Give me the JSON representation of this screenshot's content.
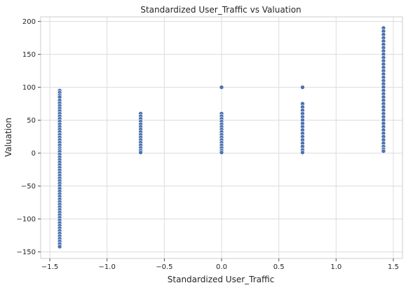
{
  "chart_data": {
    "type": "scatter",
    "title": "Standardized User_Traffic vs Valuation",
    "xlabel": "Standardized User_Traffic",
    "ylabel": "Valuation",
    "xlim": [
      -1.58,
      1.58
    ],
    "ylim": [
      -160,
      207
    ],
    "xticks": [
      -1.5,
      -1.0,
      -0.5,
      0.0,
      0.5,
      1.0,
      1.5
    ],
    "xtick_labels": [
      "−1.5",
      "−1.0",
      "−0.5",
      "0.0",
      "0.5",
      "1.0",
      "1.5"
    ],
    "yticks": [
      -150,
      -100,
      -50,
      0,
      50,
      100,
      150,
      200
    ],
    "ytick_labels": [
      "−150",
      "−100",
      "−50",
      "0",
      "50",
      "100",
      "150",
      "200"
    ],
    "grid": true,
    "point_color": "#4c72b0",
    "series": [
      {
        "x": -1.414,
        "y": [
          95,
          92,
          88,
          85,
          80,
          76,
          72,
          68,
          64,
          60,
          56,
          52,
          48,
          44,
          40,
          36,
          32,
          28,
          24,
          20,
          16,
          12,
          8,
          5,
          2,
          -2,
          -6,
          -10,
          -14,
          -18,
          -22,
          -26,
          -30,
          -34,
          -38,
          -42,
          -46,
          -50,
          -54,
          -58,
          -62,
          -66,
          -70,
          -74,
          -78,
          -82,
          -86,
          -90,
          -94,
          -98,
          -102,
          -106,
          -110,
          -114,
          -118,
          -122,
          -126,
          -130,
          -134,
          -138,
          -142
        ]
      },
      {
        "x": -0.707,
        "y": [
          60,
          56,
          52,
          48,
          44,
          40,
          36,
          32,
          28,
          24,
          20,
          16,
          12,
          8,
          4,
          1
        ]
      },
      {
        "x": 0.0,
        "y": [
          100,
          60,
          56,
          52,
          48,
          44,
          40,
          36,
          32,
          28,
          24,
          20,
          16,
          12,
          8,
          4,
          1
        ]
      },
      {
        "x": 0.707,
        "y": [
          100,
          75,
          70,
          65,
          60,
          55,
          50,
          45,
          40,
          35,
          30,
          25,
          20,
          15,
          10,
          5,
          1
        ]
      },
      {
        "x": 1.414,
        "y": [
          190,
          185,
          180,
          175,
          170,
          165,
          160,
          155,
          150,
          145,
          140,
          135,
          130,
          125,
          120,
          115,
          110,
          105,
          100,
          95,
          90,
          85,
          80,
          75,
          70,
          65,
          60,
          55,
          50,
          45,
          40,
          35,
          30,
          25,
          20,
          15,
          10,
          6,
          3
        ]
      }
    ]
  }
}
